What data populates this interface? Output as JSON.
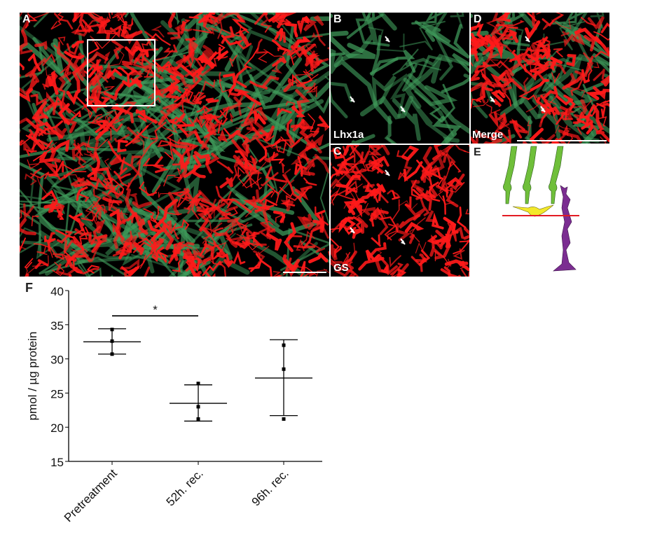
{
  "panels": {
    "A": {
      "label": "A"
    },
    "B": {
      "label": "B",
      "channel": "Lhx1a"
    },
    "C": {
      "label": "C",
      "channel": "GS"
    },
    "D": {
      "label": "D",
      "channel": "Merge"
    },
    "E": {
      "label": "E"
    },
    "F": {
      "label": "F"
    }
  },
  "colors": {
    "lhx1a": "#3f9a5a",
    "gs": "#ff1a1a",
    "cone": "#6fbf3a",
    "horizontal_cell": "#f3e82a",
    "muller_glia": "#7b2d91",
    "marker_line": "#e31b23"
  },
  "chart_data": {
    "type": "scatter",
    "ylabel": "pmol / µg protein",
    "ylim": [
      15,
      40
    ],
    "yticks": [
      15,
      20,
      25,
      30,
      35,
      40
    ],
    "categories": [
      "Pretreatment",
      "52h. rec.",
      "96h. rec."
    ],
    "points": [
      [
        34.3,
        32.6,
        30.7
      ],
      [
        26.4,
        23.0,
        21.2
      ],
      [
        32.0,
        28.5,
        21.2
      ]
    ],
    "mean": [
      32.5,
      23.5,
      27.2
    ],
    "error_low": [
      30.7,
      20.9,
      21.7
    ],
    "error_high": [
      34.4,
      26.2,
      32.8
    ],
    "significance": {
      "from": "Pretreatment",
      "to": "52h. rec.",
      "label": "*"
    }
  }
}
